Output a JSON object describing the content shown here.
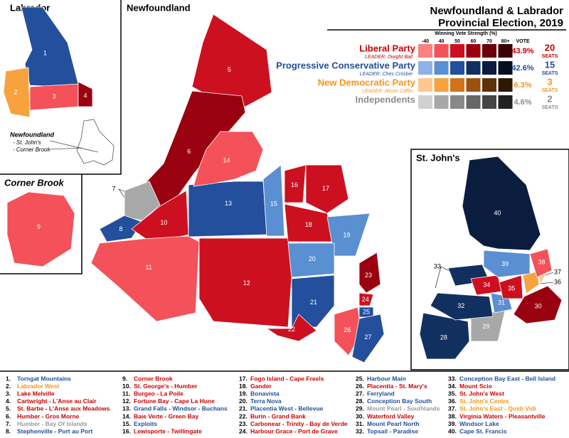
{
  "title": {
    "line1": "Newfoundland & Labrador",
    "line2": "Provincial Election, 2019"
  },
  "insets": {
    "labrador": "Labrador",
    "newfoundland": "Newfoundland",
    "corner_brook": "Corner Brook",
    "st_johns": "St. John's",
    "note": [
      "Newfoundland",
      "- St. John's",
      "- Corner Brook"
    ]
  },
  "legend": {
    "header": "Winning Vote Strength (%)",
    "scale": [
      "-40",
      "40",
      "50",
      "60",
      "70",
      "80+"
    ],
    "vote_header": "VOTE",
    "parties": [
      {
        "name": "Liberal Party",
        "leader": "LEADER: Dwight Ball",
        "vote": "43.9%",
        "seats": "20",
        "seats_label": "SEATS",
        "color": "#cc0000",
        "shades": [
          "#ff8080",
          "#f4515a",
          "#cc1020",
          "#990010",
          "#6a0008",
          "#3a0004"
        ]
      },
      {
        "name": "Progressive Conservative Party",
        "leader": "LEADER: Ches Crosbie",
        "vote": "42.6%",
        "seats": "15",
        "seats_label": "SEATS",
        "color": "#1f4e9a",
        "shades": [
          "#8fb2e6",
          "#5a8fd2",
          "#234f9c",
          "#12305f",
          "#0b1d3f",
          "#060f20"
        ]
      },
      {
        "name": "New Democratic Party",
        "leader": "LEADER: Alison Coffin",
        "vote": "6.3%",
        "seats": "3",
        "seats_label": "SEATS",
        "color": "#f7941d",
        "shades": [
          "#ffc890",
          "#f7a23e",
          "#d0731a",
          "#9a520e",
          "#5e3108",
          "#2e1804"
        ]
      },
      {
        "name": "Independents",
        "vote": "4.6%",
        "seats": "2",
        "seats_label": "SEATS",
        "color": "#8c8c8c",
        "shades": [
          "#d0d0d0",
          "#a8a8a8",
          "#888888",
          "#666666",
          "#444444",
          "#222222"
        ]
      }
    ]
  },
  "districts": [
    {
      "label": "1",
      "list_number": "1.",
      "name": "Torngat Mountains",
      "color": "#234f9c",
      "text_color": "#1f4e9a"
    },
    {
      "label": "2",
      "list_number": "2.",
      "name": "Labrador West",
      "color": "#f7a23e",
      "text_color": "#f7941d"
    },
    {
      "label": "3",
      "list_number": "3.",
      "name": "Lake Melville",
      "color": "#f4515a",
      "text_color": "#cc0000"
    },
    {
      "label": "4",
      "list_number": "4.",
      "name": "Cartwright - L'Anse au Clair",
      "color": "#990010",
      "text_color": "#cc0000"
    },
    {
      "label": "5",
      "list_number": "5.",
      "name": "St. Barbe - L'Anse aux Meadows",
      "color": "#cc1020",
      "text_color": "#cc0000"
    },
    {
      "label": "6",
      "list_number": "6.",
      "name": "Humber - Gros Morne",
      "color": "#990010",
      "text_color": "#cc0000"
    },
    {
      "label": "7",
      "list_number": "7.",
      "name": "Humber - Bay Of Islands",
      "color": "#a8a8a8",
      "text_color": "#999999"
    },
    {
      "label": "8",
      "list_number": "8.",
      "name": "Stephenville - Port au Port",
      "color": "#234f9c",
      "text_color": "#1f4e9a"
    },
    {
      "label": "9",
      "list_number": "9.",
      "name": "Corner Brook",
      "color": "#f4515a",
      "text_color": "#cc0000"
    },
    {
      "label": "10",
      "list_number": "10.",
      "name": "St. George's - Humber",
      "color": "#cc1020",
      "text_color": "#cc0000"
    },
    {
      "label": "11",
      "list_number": "11.",
      "name": "Burgeo - La Poile",
      "color": "#f4515a",
      "text_color": "#cc0000"
    },
    {
      "label": "12",
      "list_number": "12.",
      "name": "Fortune Bay - Cape La Hune",
      "color": "#cc1020",
      "text_color": "#cc0000"
    },
    {
      "label": "13",
      "list_number": "13.",
      "name": "Grand Falls - Windsor - Buchans",
      "color": "#234f9c",
      "text_color": "#1f4e9a"
    },
    {
      "label": "14",
      "list_number": "14.",
      "name": "Baie Verte - Green Bay",
      "color": "#f4515a",
      "text_color": "#cc0000"
    },
    {
      "label": "15",
      "list_number": "15.",
      "name": "Exploits",
      "color": "#5a8fd2",
      "text_color": "#1f4e9a"
    },
    {
      "label": "16",
      "list_number": "16.",
      "name": "Lewisporte - Twillingate",
      "color": "#cc1020",
      "text_color": "#cc0000"
    },
    {
      "label": "17",
      "list_number": "17.",
      "name": "Fogo Island - Cape Freels",
      "color": "#cc1020",
      "text_color": "#cc0000"
    },
    {
      "label": "18",
      "list_number": "18.",
      "name": "Gander",
      "color": "#cc1020",
      "text_color": "#cc0000"
    },
    {
      "label": "19",
      "list_number": "19.",
      "name": "Bonavista",
      "color": "#5a8fd2",
      "text_color": "#1f4e9a"
    },
    {
      "label": "20",
      "list_number": "20.",
      "name": "Terra Nova",
      "color": "#5a8fd2",
      "text_color": "#1f4e9a"
    },
    {
      "label": "21",
      "list_number": "21.",
      "name": "Placentia West - Bellevue",
      "color": "#234f9c",
      "text_color": "#1f4e9a"
    },
    {
      "label": "22",
      "list_number": "22.",
      "name": "Burin - Grand Bank",
      "color": "#cc1020",
      "text_color": "#cc0000"
    },
    {
      "label": "23",
      "list_number": "23.",
      "name": "Carbonear - Trinity - Bay de Verde",
      "color": "#990010",
      "text_color": "#cc0000"
    },
    {
      "label": "24",
      "list_number": "24.",
      "name": "Harbour Grace - Port de Grave",
      "color": "#cc1020",
      "text_color": "#cc0000"
    },
    {
      "label": "25",
      "list_number": "25.",
      "name": "Harbour Main",
      "color": "#234f9c",
      "text_color": "#1f4e9a"
    },
    {
      "label": "26",
      "list_number": "26.",
      "name": "Placentia - St. Mary's",
      "color": "#f4515a",
      "text_color": "#cc0000"
    },
    {
      "label": "27",
      "list_number": "27.",
      "name": "Ferryland",
      "color": "#234f9c",
      "text_color": "#1f4e9a"
    },
    {
      "label": "28",
      "list_number": "28.",
      "name": "Conception Bay South",
      "color": "#12305f",
      "text_color": "#1f4e9a"
    },
    {
      "label": "29",
      "list_number": "29.",
      "name": "Mount Pearl - Southlands",
      "color": "#a8a8a8",
      "text_color": "#999999"
    },
    {
      "label": "30",
      "list_number": "30.",
      "name": "Waterford Valley",
      "color": "#990010",
      "text_color": "#cc0000"
    },
    {
      "label": "31",
      "list_number": "31.",
      "name": "Mount Pearl North",
      "color": "#5a8fd2",
      "text_color": "#1f4e9a"
    },
    {
      "label": "32",
      "list_number": "32.",
      "name": "Topsail - Paradise",
      "color": "#12305f",
      "text_color": "#1f4e9a"
    },
    {
      "label": "33",
      "list_number": "33.",
      "name": "Conception Bay East - Bell Island",
      "color": "#12305f",
      "text_color": "#1f4e9a"
    },
    {
      "label": "34",
      "list_number": "34.",
      "name": "Mount Scio",
      "color": "#cc1020",
      "text_color": "#cc0000"
    },
    {
      "label": "35",
      "list_number": "35.",
      "name": "St. John's West",
      "color": "#cc1020",
      "text_color": "#cc0000"
    },
    {
      "label": "36",
      "list_number": "36.",
      "name": "St. John's Centre",
      "color": "#f7a23e",
      "text_color": "#f7941d"
    },
    {
      "label": "37",
      "list_number": "37.",
      "name": "St. John's East - Quidi Vidi",
      "color": "#ffc890",
      "text_color": "#f7941d"
    },
    {
      "label": "38",
      "list_number": "38.",
      "name": "Virginia Waters - Pleasantville",
      "color": "#f4515a",
      "text_color": "#cc0000"
    },
    {
      "label": "39",
      "list_number": "39.",
      "name": "Windsor Lake",
      "color": "#5a8fd2",
      "text_color": "#1f4e9a"
    },
    {
      "label": "40",
      "list_number": "40.",
      "name": "Cape St. Francis",
      "color": "#0b1d3f",
      "text_color": "#1f4e9a"
    }
  ]
}
